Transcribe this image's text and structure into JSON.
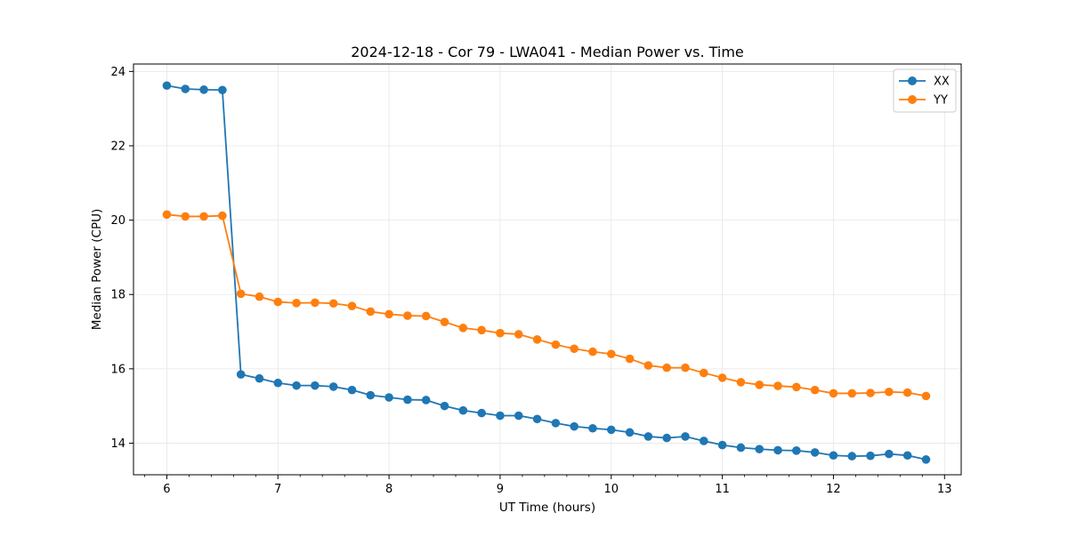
{
  "chart_data": {
    "type": "line",
    "title": "2024-12-18 - Cor 79 - LWA041 - Median Power vs. Time",
    "xlabel": "UT Time (hours)",
    "ylabel": "Median Power (CPU)",
    "xlim": [
      5.7,
      13.15
    ],
    "ylim": [
      13.15,
      24.2
    ],
    "xticks": [
      6,
      7,
      8,
      9,
      10,
      11,
      12,
      13
    ],
    "xtick_labels": [
      "6",
      "7",
      "8",
      "9",
      "10",
      "11",
      "12",
      "13"
    ],
    "yticks": [
      14,
      16,
      18,
      20,
      22,
      24
    ],
    "ytick_labels": [
      "14",
      "16",
      "18",
      "20",
      "22",
      "24"
    ],
    "grid": true,
    "legend_position": "top-right",
    "x": [
      6.0,
      6.1667,
      6.3333,
      6.5,
      6.6667,
      6.8333,
      7.0,
      7.1667,
      7.3333,
      7.5,
      7.6667,
      7.8333,
      8.0,
      8.1667,
      8.3333,
      8.5,
      8.6667,
      8.8333,
      9.0,
      9.1667,
      9.3333,
      9.5,
      9.6667,
      9.8333,
      10.0,
      10.1667,
      10.3333,
      10.5,
      10.6667,
      10.8333,
      11.0,
      11.1667,
      11.3333,
      11.5,
      11.6667,
      11.8333,
      12.0,
      12.1667,
      12.3333,
      12.5,
      12.6667,
      12.8333
    ],
    "series": [
      {
        "name": "XX",
        "color": "#1f77b4",
        "values": [
          23.62,
          23.53,
          23.51,
          23.5,
          15.85,
          15.74,
          15.62,
          15.55,
          15.55,
          15.52,
          15.43,
          15.29,
          15.23,
          15.17,
          15.16,
          15.0,
          14.88,
          14.81,
          14.74,
          14.74,
          14.65,
          14.54,
          14.45,
          14.4,
          14.36,
          14.29,
          14.18,
          14.14,
          14.18,
          14.06,
          13.95,
          13.88,
          13.84,
          13.81,
          13.8,
          13.75,
          13.67,
          13.65,
          13.66,
          13.71,
          13.67,
          13.56
        ]
      },
      {
        "name": "YY",
        "color": "#ff7f0e",
        "values": [
          20.15,
          20.1,
          20.1,
          20.12,
          18.02,
          17.94,
          17.8,
          17.77,
          17.78,
          17.76,
          17.69,
          17.54,
          17.47,
          17.43,
          17.42,
          17.26,
          17.1,
          17.04,
          16.96,
          16.93,
          16.79,
          16.65,
          16.54,
          16.46,
          16.4,
          16.27,
          16.09,
          16.03,
          16.03,
          15.89,
          15.76,
          15.64,
          15.57,
          15.54,
          15.51,
          15.43,
          15.34,
          15.34,
          15.35,
          15.38,
          15.36,
          15.27
        ]
      }
    ]
  }
}
